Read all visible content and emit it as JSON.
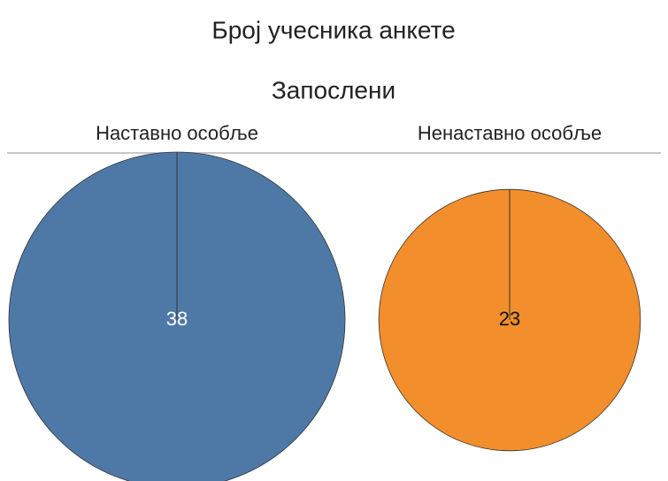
{
  "chart_data": {
    "type": "pie",
    "title": "Број учесника анкете",
    "subtitle": "Запослени",
    "categories": [
      "Наставно особље",
      "Ненаставно особље"
    ],
    "values": [
      38,
      23
    ],
    "colors": [
      "#4e79a7",
      "#f28e2b"
    ]
  }
}
